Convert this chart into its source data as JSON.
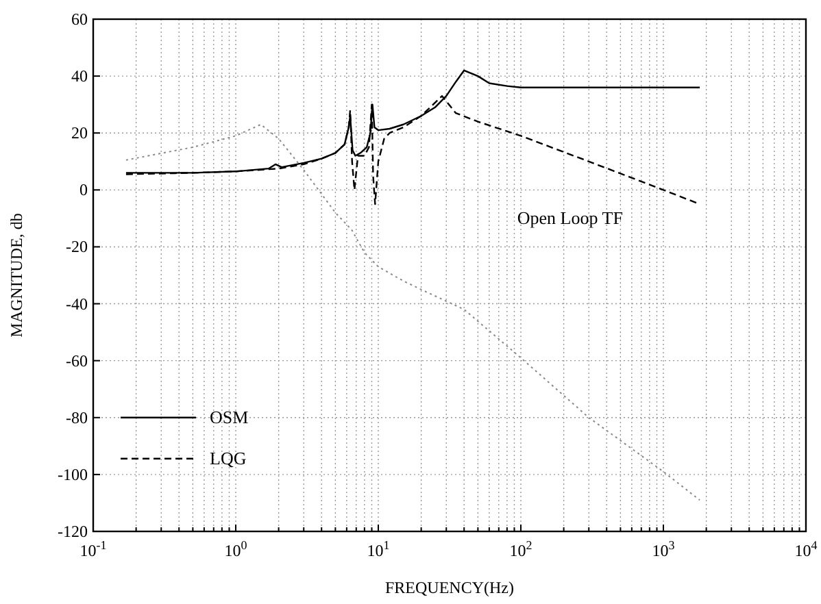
{
  "chart_data": {
    "type": "line",
    "xlabel": "FREQUENCY(Hz)",
    "ylabel": "MAGNITUDE, db",
    "log": "x",
    "grid": true,
    "legend": "bottom left",
    "xlim": [
      0.1,
      10000
    ],
    "ylim": [
      -120,
      60
    ],
    "xticks": [
      {
        "value": 0.1,
        "label": "10$^{-1}$"
      },
      {
        "value": 1,
        "label": "10$^{0}$"
      },
      {
        "value": 10,
        "label": "10$^{1}$"
      },
      {
        "value": 100,
        "label": "10$^{2}$"
      },
      {
        "value": 1000,
        "label": "10$^{3}$"
      },
      {
        "value": 10000,
        "label": "10$^{4}$"
      }
    ],
    "yticks": [
      -120,
      -100,
      -80,
      -60,
      -40,
      -20,
      0,
      20,
      40,
      60
    ],
    "annotations": [
      "Open Loop TF"
    ],
    "series": [
      {
        "name": "OSM",
        "color": "#000000",
        "line_style": "solid",
        "x": [
          0.17,
          0.5,
          1,
          1.7,
          1.9,
          2.1,
          3,
          4,
          5,
          5.8,
          6.2,
          6.35,
          6.6,
          6.9,
          7.5,
          8.3,
          8.8,
          9.1,
          9.4,
          10,
          12,
          15,
          20,
          25,
          30,
          35,
          40,
          50,
          60,
          80,
          100,
          300,
          1000,
          1800
        ],
        "values": [
          6,
          6,
          6.5,
          7.5,
          9,
          8,
          9.5,
          11,
          13,
          16,
          22,
          26,
          14,
          12,
          13,
          15,
          20,
          30,
          22,
          21,
          21.5,
          23,
          26,
          29,
          33,
          38,
          42,
          40,
          37.5,
          36.5,
          36,
          36,
          36,
          36
        ]
      },
      {
        "name": "LQG",
        "color": "#000000",
        "line_style": "dashed",
        "x": [
          0.17,
          0.5,
          1,
          2,
          3,
          4,
          5,
          5.8,
          6.2,
          6.35,
          6.55,
          6.8,
          7.2,
          8,
          8.6,
          9,
          9.2,
          9.5,
          10,
          11,
          12,
          15,
          20,
          28,
          35,
          50,
          100,
          300,
          1000,
          1800
        ],
        "values": [
          5.5,
          6,
          6.5,
          7.5,
          9,
          11,
          13,
          16,
          22,
          28,
          10,
          0,
          12,
          12,
          15,
          30,
          5,
          -5,
          10,
          18,
          20,
          22,
          26,
          33,
          27,
          24,
          19,
          10,
          0,
          -5
        ]
      },
      {
        "color": "#888888",
        "line_style": "dotted",
        "x": [
          0.17,
          0.5,
          1,
          1.5,
          2,
          3,
          5,
          6.5,
          8,
          10,
          15,
          20,
          40,
          100,
          300,
          1000,
          1800
        ],
        "values": [
          10.5,
          15,
          19,
          23,
          18,
          7,
          -8,
          -14,
          -22,
          -27,
          -32,
          -35,
          -42,
          -59,
          -80,
          -99,
          -109
        ]
      }
    ]
  }
}
